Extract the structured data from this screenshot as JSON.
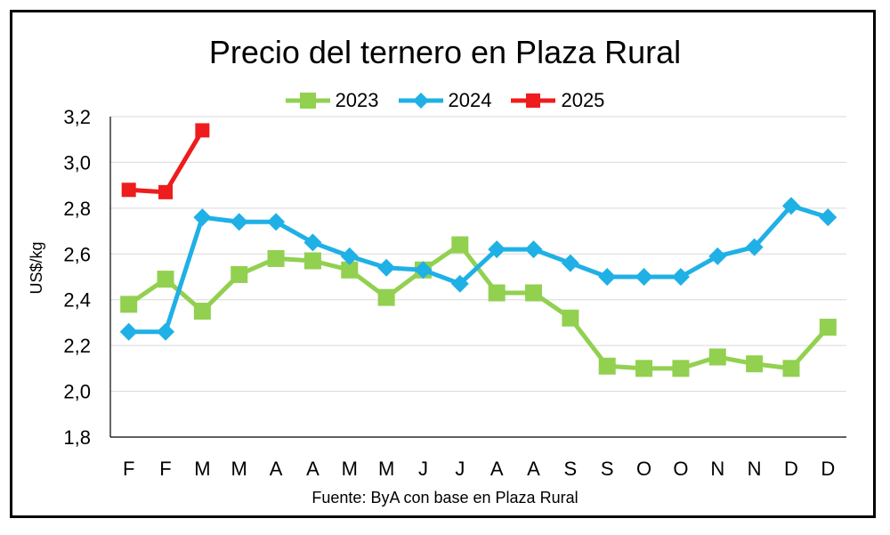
{
  "chart_data": {
    "type": "line",
    "title": "Precio del ternero en Plaza Rural",
    "ylabel": "US$/kg",
    "xlabel": "",
    "source": "Fuente: ByA con base en Plaza Rural",
    "categories": [
      "F",
      "F",
      "M",
      "M",
      "A",
      "A",
      "M",
      "M",
      "J",
      "J",
      "A",
      "A",
      "S",
      "S",
      "O",
      "O",
      "N",
      "N",
      "D",
      "D"
    ],
    "ylim": [
      1.8,
      3.2
    ],
    "yticks": [
      "1,8",
      "2,0",
      "2,2",
      "2,4",
      "2,6",
      "2,8",
      "3,0",
      "3,2"
    ],
    "ytick_values": [
      1.8,
      2.0,
      2.2,
      2.4,
      2.6,
      2.8,
      3.0,
      3.2
    ],
    "grid": true,
    "legend_position": "top",
    "series": [
      {
        "name": "2023",
        "color": "#92d050",
        "marker": "square",
        "values": [
          2.38,
          2.49,
          2.35,
          2.51,
          2.58,
          2.57,
          2.53,
          2.41,
          2.53,
          2.64,
          2.43,
          2.43,
          2.32,
          2.11,
          2.1,
          2.1,
          2.15,
          2.12,
          2.1,
          2.28
        ]
      },
      {
        "name": "2024",
        "color": "#1fb0e6",
        "marker": "diamond",
        "values": [
          2.26,
          2.26,
          2.76,
          2.74,
          2.74,
          2.65,
          2.59,
          2.54,
          2.53,
          2.47,
          2.62,
          2.62,
          2.56,
          2.5,
          2.5,
          2.5,
          2.59,
          2.63,
          2.81,
          2.76
        ]
      },
      {
        "name": "2025",
        "color": "#ee1c1c",
        "marker": "square",
        "values": [
          2.88,
          2.87,
          3.14,
          null,
          null,
          null,
          null,
          null,
          null,
          null,
          null,
          null,
          null,
          null,
          null,
          null,
          null,
          null,
          null,
          null
        ]
      }
    ]
  }
}
